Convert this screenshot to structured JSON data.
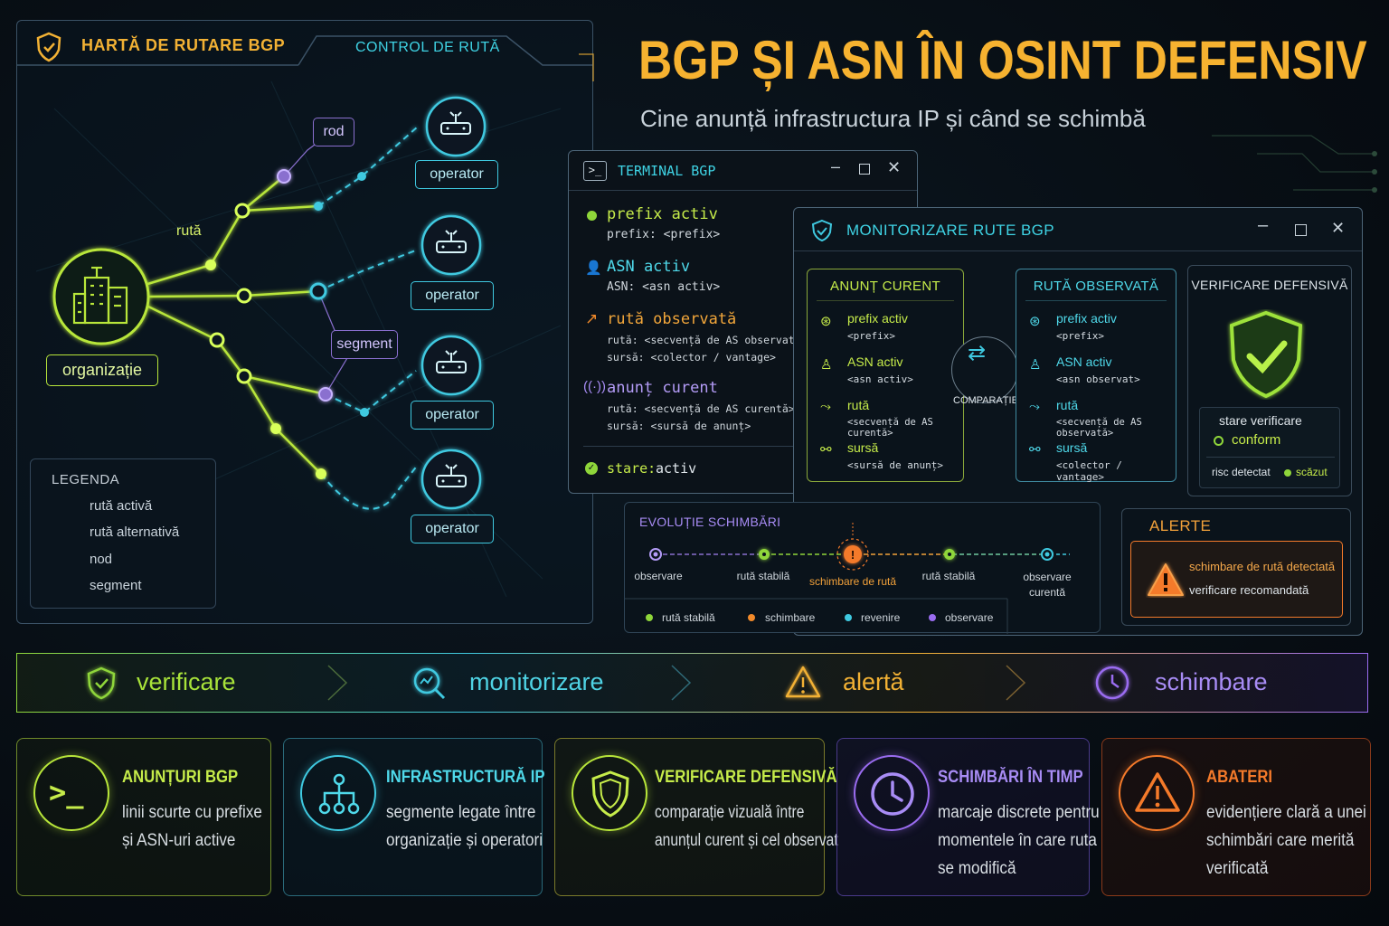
{
  "title": "BGP ȘI ASN ÎN OSINT DEFENSIV",
  "subtitle": "Cine anunță infrastructura IP și când se schimbă",
  "colors": {
    "gold": "#f6b230",
    "green": "#b8e63a",
    "cyan": "#3fc9e0",
    "purple": "#9a6cf0",
    "orange": "#f47a2a"
  },
  "map": {
    "title": "HARTĂ DE RUTARE BGP",
    "control": "CONTROL DE RUTĂ",
    "org_label": "organizație",
    "route_label": "rută",
    "node_label": "rod",
    "segment_label": "segment",
    "operators": [
      "operator",
      "operator",
      "operator",
      "operator"
    ],
    "legend": {
      "title": "LEGENDA",
      "items": [
        "rută activă",
        "rută alternativă",
        "nod",
        "segment"
      ]
    }
  },
  "terminal": {
    "title": "TERMINAL BGP",
    "entries": [
      {
        "head": "prefix activ",
        "lines": [
          "prefix: <prefix>"
        ]
      },
      {
        "head": "ASN activ",
        "lines": [
          "ASN: <asn activ>"
        ]
      },
      {
        "head": "rută observată",
        "lines": [
          "rută: <secvență de AS observată>",
          "sursă: <colector / vantage>"
        ]
      },
      {
        "head": "anunț curent",
        "lines": [
          "rută: <secvență de AS curentă>",
          "sursă: <sursă de anunț>"
        ]
      }
    ],
    "status_label": "stare:",
    "status_value": "activ"
  },
  "monitor": {
    "title": "MONITORIZARE RUTE BGP",
    "current": {
      "title": "ANUNȚ CURENT",
      "items": [
        {
          "label": "prefix activ",
          "value": "<prefix>"
        },
        {
          "label": "ASN activ",
          "value": "<asn activ>"
        },
        {
          "label": "rută",
          "value": "<secvență de AS curentă>"
        },
        {
          "label": "sursă",
          "value": "<sursă de anunț>"
        }
      ]
    },
    "compare_label": "COMPARAȚIE",
    "observed": {
      "title": "RUTĂ OBSERVATĂ",
      "items": [
        {
          "label": "prefix activ",
          "value": "<prefix>"
        },
        {
          "label": "ASN activ",
          "value": "<asn observat>"
        },
        {
          "label": "rută",
          "value": "<secvență de AS observată>"
        },
        {
          "label": "sursă",
          "value": "<colector / vantage>"
        }
      ]
    },
    "verify": {
      "title": "VERIFICARE DEFENSIVĂ",
      "state_label": "stare verificare",
      "state_value": "conform",
      "risk_label": "risc detectat",
      "risk_value": "scăzut"
    }
  },
  "timeline": {
    "title": "EVOLUȚIE SCHIMBĂRI",
    "points": [
      "observare",
      "rută stabilă",
      "schimbare de rută",
      "rută stabilă",
      "observare curentă"
    ],
    "legend": [
      "rută stabilă",
      "schimbare",
      "revenire",
      "observare"
    ]
  },
  "alerts": {
    "title": "ALERTE",
    "line1": "schimbare de rută detectată",
    "line2": "verificare recomandată"
  },
  "pipeline": [
    "verificare",
    "monitorizare",
    "alertă",
    "schimbare"
  ],
  "cards": [
    {
      "title": "ANUNȚURI BGP",
      "lines": [
        "linii scurte cu prefixe",
        "și ASN-uri active"
      ]
    },
    {
      "title": "INFRASTRUCTURĂ IP",
      "lines": [
        "segmente legate între",
        "organizație și operatori"
      ]
    },
    {
      "title": "VERIFICARE DEFENSIVĂ",
      "lines": [
        "comparație vizuală între",
        "anunțul curent și cel observat"
      ]
    },
    {
      "title": "SCHIMBĂRI ÎN TIMP",
      "lines": [
        "marcaje discrete pentru",
        "momentele în care ruta",
        "se modifică"
      ]
    },
    {
      "title": "ABATERI",
      "lines": [
        "evidențiere clară a unei",
        "schimbări care merită",
        "verificată"
      ]
    }
  ]
}
